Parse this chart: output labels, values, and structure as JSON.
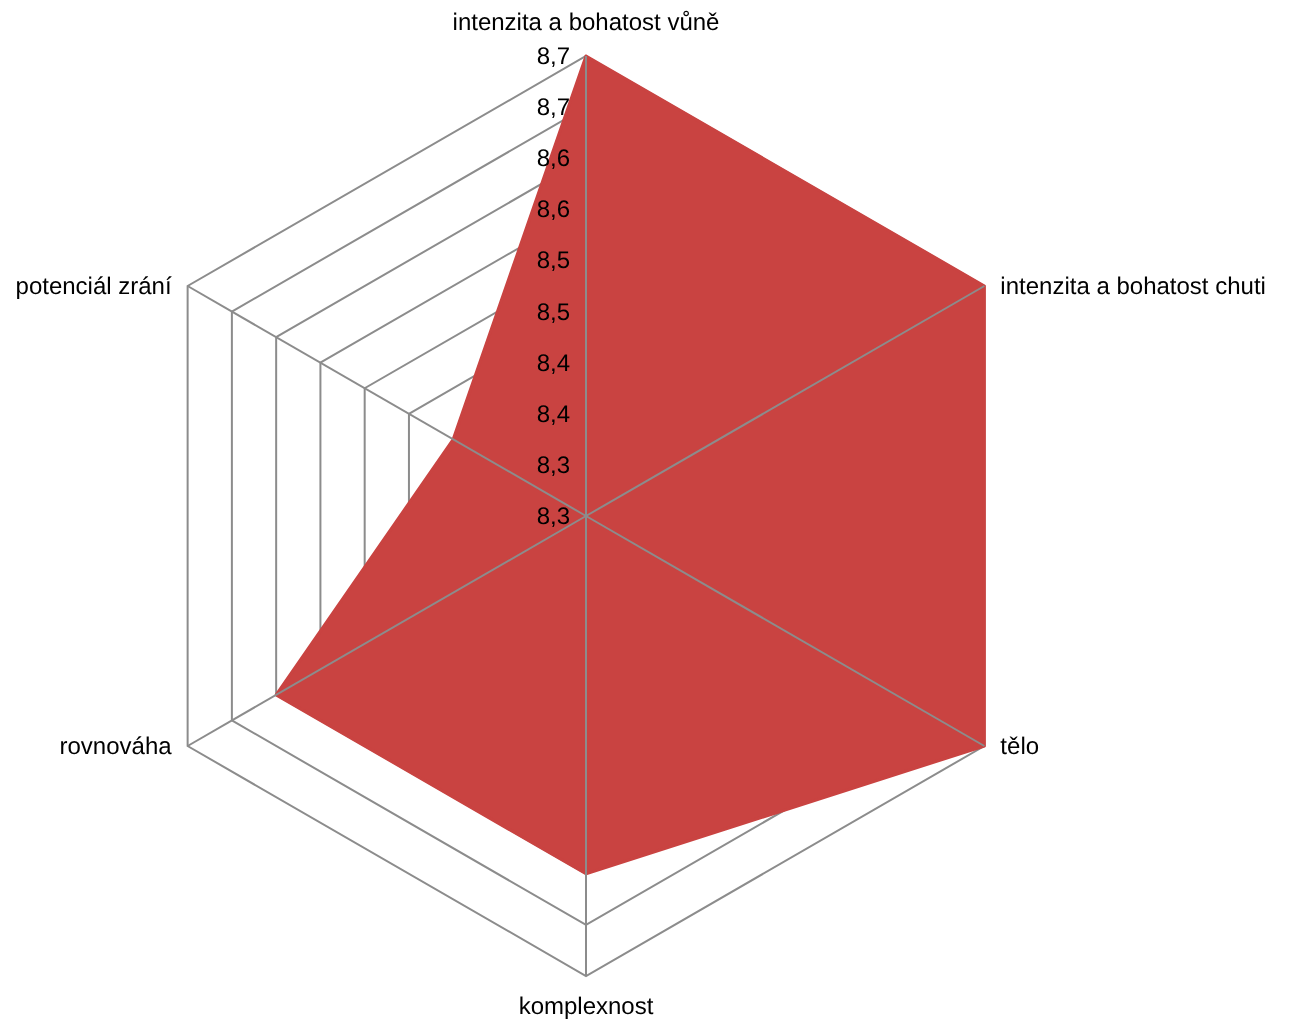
{
  "chart_data": {
    "type": "radar",
    "categories": [
      "intenzita a bohatost vůně",
      "intenzita a bohatost chuti",
      "tělo",
      "komplexnost",
      "rovnováha",
      "potenciál zrání"
    ],
    "series": [
      {
        "color": "#c94341",
        "values": [
          8.7,
          8.7,
          8.7,
          8.6,
          8.6,
          8.4
        ]
      }
    ],
    "ylim": [
      8.25,
      8.7
    ],
    "yticks": [
      {
        "value": 8.25,
        "label": "8,3"
      },
      {
        "value": 8.3,
        "label": "8,3"
      },
      {
        "value": 8.35,
        "label": "8,4"
      },
      {
        "value": 8.4,
        "label": "8,4"
      },
      {
        "value": 8.45,
        "label": "8,5"
      },
      {
        "value": 8.5,
        "label": "8,5"
      },
      {
        "value": 8.55,
        "label": "8,6"
      },
      {
        "value": 8.6,
        "label": "8,6"
      },
      {
        "value": 8.65,
        "label": "8,7"
      },
      {
        "value": 8.7,
        "label": "8,7"
      }
    ],
    "grid": true
  }
}
